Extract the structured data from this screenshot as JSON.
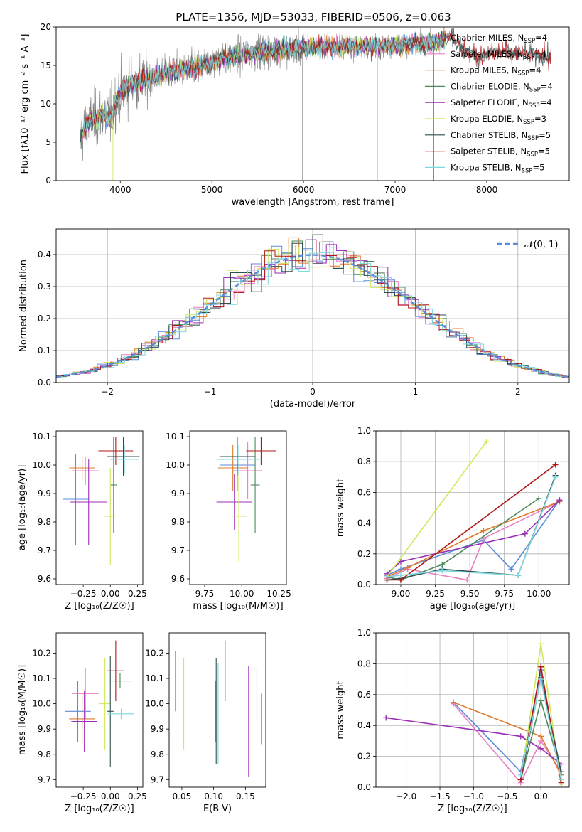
{
  "title": "PLATE=1356, MJD=53033, FIBERID=0506, z=0.063",
  "colors": {
    "chabrier_miles": "#5b8bd9",
    "salpeter_miles": "#e87fc0",
    "kroupa_miles": "#e07b2a",
    "chabrier_elodie": "#4c8a5a",
    "salpeter_elodie": "#9b2fb5",
    "kroupa_elodie": "#cfe85a",
    "chabrier_stelib": "#2f4f4f",
    "salpeter_stelib": "#b01717",
    "kroupa_stelib": "#7fd8e0",
    "data": "#808080"
  },
  "chart_data": [
    {
      "id": "spectrum",
      "type": "line",
      "xlabel": "wavelength [Angstrom, rest frame]",
      "ylabel": "Flux [fλ10⁻¹⁷ erg cm⁻² s⁻¹ A⁻¹]",
      "xlim": [
        3300,
        8900
      ],
      "ylim": [
        0,
        20
      ],
      "xticks": [
        4000,
        5000,
        6000,
        7000,
        8000
      ],
      "yticks": [
        0,
        5,
        10,
        15,
        20
      ],
      "legend_position": "right",
      "legend": [
        {
          "label": "Chabrier MILES, N_SSP=4",
          "key": "chabrier_miles"
        },
        {
          "label": "Salpeter MILES, N_SSP=4",
          "key": "salpeter_miles"
        },
        {
          "label": "Kroupa MILES, N_SSP=4",
          "key": "kroupa_miles"
        },
        {
          "label": "Chabrier ELODIE, N_SSP=4",
          "key": "chabrier_elodie"
        },
        {
          "label": "Salpeter ELODIE, N_SSP=4",
          "key": "salpeter_elodie"
        },
        {
          "label": "Kroupa ELODIE, N_SSP=3",
          "key": "kroupa_elodie"
        },
        {
          "label": "Chabrier STELIB, N_SSP=5",
          "key": "chabrier_stelib"
        },
        {
          "label": "Salpeter STELIB, N_SSP=5",
          "key": "salpeter_stelib"
        },
        {
          "label": "Kroupa STELIB, N_SSP=5",
          "key": "kroupa_stelib"
        }
      ],
      "continuum": [
        [
          3560,
          5.5
        ],
        [
          3650,
          7.5
        ],
        [
          3800,
          8.5
        ],
        [
          3900,
          8.2
        ],
        [
          3950,
          10.5
        ],
        [
          4000,
          11.5
        ],
        [
          4100,
          12.5
        ],
        [
          4300,
          13.2
        ],
        [
          4500,
          14.0
        ],
        [
          4700,
          14.5
        ],
        [
          4900,
          15.0
        ],
        [
          5100,
          15.8
        ],
        [
          5300,
          16.2
        ],
        [
          5500,
          16.7
        ],
        [
          5700,
          17.0
        ],
        [
          5900,
          17.2
        ],
        [
          6100,
          17.4
        ],
        [
          6300,
          17.5
        ],
        [
          6500,
          17.5
        ],
        [
          6700,
          17.5
        ],
        [
          6900,
          17.6
        ],
        [
          7100,
          17.7
        ],
        [
          7300,
          17.8
        ],
        [
          7500,
          18.2
        ],
        [
          7600,
          19.0
        ],
        [
          7700,
          17.6
        ],
        [
          7900,
          16.0
        ],
        [
          8100,
          16.8
        ],
        [
          8300,
          16.5
        ],
        [
          8500,
          16.5
        ],
        [
          8700,
          16.0
        ]
      ]
    },
    {
      "id": "residuals",
      "type": "step",
      "xlabel": "(data-model)/error",
      "ylabel": "Normed distribution",
      "xlim": [
        -2.5,
        2.5
      ],
      "ylim": [
        0,
        0.48
      ],
      "xticks": [
        -2,
        -1,
        0,
        1,
        2
      ],
      "yticks": [
        0.0,
        0.1,
        0.2,
        0.3,
        0.4
      ],
      "legend": "𝒩(0, 1)",
      "legend_position": "top-right",
      "bin_width": 0.1
    },
    {
      "id": "age_vs_Z",
      "type": "errorbar",
      "xlabel": "Z [log₁₀(Z/Z☉)]",
      "ylabel": "age  [log₁₀(age/yr)]",
      "xlim": [
        -0.5,
        0.3
      ],
      "ylim": [
        9.58,
        10.12
      ],
      "xticks": [
        -0.25,
        0.0,
        0.25
      ],
      "yticks": [
        9.6,
        9.7,
        9.8,
        9.9,
        10.0,
        10.1
      ],
      "points": [
        {
          "key": "chabrier_miles",
          "x": -0.32,
          "xerr": 0.12,
          "y": 9.88,
          "yerr": 0.16
        },
        {
          "key": "salpeter_miles",
          "x": -0.23,
          "xerr": 0.12,
          "y": 9.98,
          "yerr": 0.05
        },
        {
          "key": "kroupa_miles",
          "x": -0.26,
          "xerr": 0.12,
          "y": 9.99,
          "yerr": 0.04
        },
        {
          "key": "chabrier_elodie",
          "x": 0.03,
          "xerr": 0.03,
          "y": 9.93,
          "yerr": 0.17
        },
        {
          "key": "salpeter_elodie",
          "x": -0.2,
          "xerr": 0.17,
          "y": 9.87,
          "yerr": 0.15
        },
        {
          "key": "kroupa_elodie",
          "x": 0.0,
          "xerr": 0.05,
          "y": 9.82,
          "yerr": 0.17
        },
        {
          "key": "chabrier_stelib",
          "x": 0.12,
          "xerr": 0.15,
          "y": 10.03,
          "yerr": 0.07
        },
        {
          "key": "salpeter_stelib",
          "x": 0.05,
          "xerr": 0.16,
          "y": 10.05,
          "yerr": 0.05
        },
        {
          "key": "kroupa_stelib",
          "x": 0.13,
          "xerr": 0.13,
          "y": 10.02,
          "yerr": 0.05
        }
      ]
    },
    {
      "id": "age_vs_mass",
      "type": "errorbar",
      "xlabel": "mass [log₁₀(M/M☉)]",
      "ylabel": "",
      "xlim": [
        9.65,
        10.3
      ],
      "ylim": [
        9.58,
        10.12
      ],
      "xticks": [
        9.75,
        10.0,
        10.25
      ],
      "yticks": [
        9.6,
        9.7,
        9.8,
        9.9,
        10.0,
        10.1
      ],
      "points": [
        {
          "key": "chabrier_miles",
          "x": 9.97,
          "xerr": 0.12,
          "y": 10.0,
          "yerr": 0.09
        },
        {
          "key": "salpeter_miles",
          "x": 10.04,
          "xerr": 0.1,
          "y": 9.98,
          "yerr": 0.1
        },
        {
          "key": "kroupa_miles",
          "x": 9.94,
          "xerr": 0.1,
          "y": 9.99,
          "yerr": 0.08
        },
        {
          "key": "chabrier_elodie",
          "x": 10.09,
          "xerr": 0.03,
          "y": 9.93,
          "yerr": 0.17
        },
        {
          "key": "salpeter_elodie",
          "x": 9.95,
          "xerr": 0.12,
          "y": 9.87,
          "yerr": 0.1
        },
        {
          "key": "kroupa_elodie",
          "x": 9.98,
          "xerr": 0.05,
          "y": 9.82,
          "yerr": 0.16
        },
        {
          "key": "chabrier_stelib",
          "x": 9.97,
          "xerr": 0.12,
          "y": 10.03,
          "yerr": 0.07
        },
        {
          "key": "salpeter_stelib",
          "x": 10.13,
          "xerr": 0.1,
          "y": 10.05,
          "yerr": 0.05
        },
        {
          "key": "kroupa_stelib",
          "x": 9.98,
          "xerr": 0.15,
          "y": 10.02,
          "yerr": 0.05
        }
      ]
    },
    {
      "id": "weight_vs_age",
      "type": "line",
      "xlabel": "age  [log₁₀(age/yr)]",
      "ylabel": "mass weight",
      "xlim": [
        8.82,
        10.22
      ],
      "ylim": [
        0,
        1
      ],
      "xticks": [
        9.0,
        9.25,
        9.5,
        9.75,
        10.0
      ],
      "yticks": [
        0.0,
        0.2,
        0.4,
        0.6,
        0.8,
        1.0
      ],
      "series": [
        {
          "key": "chabrier_miles",
          "x": [
            8.9,
            9.0,
            9.6,
            9.8,
            10.15
          ],
          "y": [
            0.06,
            0.1,
            0.29,
            0.1,
            0.55
          ]
        },
        {
          "key": "salpeter_miles",
          "x": [
            8.9,
            9.05,
            9.48,
            9.6,
            10.15
          ],
          "y": [
            0.04,
            0.1,
            0.03,
            0.3,
            0.54
          ]
        },
        {
          "key": "kroupa_miles",
          "x": [
            8.9,
            9.05,
            9.6,
            10.15
          ],
          "y": [
            0.05,
            0.11,
            0.35,
            0.54
          ]
        },
        {
          "key": "chabrier_elodie",
          "x": [
            8.9,
            9.0,
            9.3,
            10.0
          ],
          "y": [
            0.05,
            0.03,
            0.13,
            0.56
          ]
        },
        {
          "key": "salpeter_elodie",
          "x": [
            8.9,
            9.0,
            9.9,
            10.15
          ],
          "y": [
            0.07,
            0.15,
            0.33,
            0.55
          ]
        },
        {
          "key": "kroupa_elodie",
          "x": [
            8.9,
            9.62
          ],
          "y": [
            0.05,
            0.93
          ]
        },
        {
          "key": "chabrier_stelib",
          "x": [
            8.9,
            9.0,
            9.3,
            9.85,
            10.12
          ],
          "y": [
            0.03,
            0.04,
            0.1,
            0.06,
            0.71
          ]
        },
        {
          "key": "salpeter_stelib",
          "x": [
            8.9,
            9.0,
            10.12
          ],
          "y": [
            0.03,
            0.03,
            0.78
          ]
        },
        {
          "key": "kroupa_stelib",
          "x": [
            8.9,
            9.0,
            9.3,
            9.85,
            10.12
          ],
          "y": [
            0.05,
            0.06,
            0.09,
            0.06,
            0.7
          ]
        }
      ]
    },
    {
      "id": "mass_vs_Z",
      "type": "errorbar",
      "xlabel": "Z [log₁₀(Z/Z☉)]",
      "ylabel": "mass [log₁₀(M/M☉)]",
      "xlim": [
        -0.5,
        0.3
      ],
      "ylim": [
        9.67,
        10.28
      ],
      "xticks": [
        -0.25,
        0.0,
        0.25
      ],
      "yticks": [
        9.7,
        9.8,
        9.9,
        10.0,
        10.1,
        10.2
      ],
      "points": [
        {
          "key": "chabrier_miles",
          "x": -0.3,
          "xerr": 0.12,
          "y": 9.97,
          "yerr": 0.12
        },
        {
          "key": "salpeter_miles",
          "x": -0.23,
          "xerr": 0.12,
          "y": 10.04,
          "yerr": 0.1
        },
        {
          "key": "kroupa_miles",
          "x": -0.26,
          "xerr": 0.12,
          "y": 9.94,
          "yerr": 0.1
        },
        {
          "key": "chabrier_elodie",
          "x": 0.09,
          "xerr": 0.1,
          "y": 10.09,
          "yerr": 0.03
        },
        {
          "key": "salpeter_elodie",
          "x": -0.24,
          "xerr": 0.12,
          "y": 9.93,
          "yerr": 0.12
        },
        {
          "key": "kroupa_elodie",
          "x": -0.05,
          "xerr": 0.05,
          "y": 10.0,
          "yerr": 0.18
        },
        {
          "key": "chabrier_stelib",
          "x": 0.0,
          "xerr": 0.03,
          "y": 9.97,
          "yerr": 0.22
        },
        {
          "key": "salpeter_stelib",
          "x": 0.05,
          "xerr": 0.08,
          "y": 10.13,
          "yerr": 0.12
        },
        {
          "key": "kroupa_stelib",
          "x": 0.1,
          "xerr": 0.12,
          "y": 9.96,
          "yerr": 0.02
        }
      ]
    },
    {
      "id": "mass_vs_ebv",
      "type": "errorbar",
      "xlabel": "E(B-V)",
      "ylabel": "",
      "xlim": [
        0.03,
        0.182
      ],
      "ylim": [
        9.67,
        10.28
      ],
      "xticks": [
        0.05,
        0.1,
        0.15
      ],
      "yticks": [
        9.7,
        9.8,
        9.9,
        10.0,
        10.1,
        10.2
      ],
      "points": [
        {
          "key": "chabrier_miles",
          "x": 0.103,
          "y": 9.97,
          "yerr": 0.12
        },
        {
          "key": "salpeter_miles",
          "x": 0.168,
          "y": 10.04,
          "yerr": 0.1
        },
        {
          "key": "kroupa_miles",
          "x": 0.175,
          "y": 9.94,
          "yerr": 0.1
        },
        {
          "key": "chabrier_elodie",
          "x": 0.04,
          "y": 10.09,
          "yerr": 0.12
        },
        {
          "key": "salpeter_elodie",
          "x": 0.155,
          "y": 9.93,
          "yerr": 0.22
        },
        {
          "key": "kroupa_elodie",
          "x": 0.053,
          "y": 10.0,
          "yerr": 0.18
        },
        {
          "key": "chabrier_stelib",
          "x": 0.104,
          "y": 9.97,
          "yerr": 0.21
        },
        {
          "key": "salpeter_stelib",
          "x": 0.118,
          "y": 10.13,
          "yerr": 0.12
        },
        {
          "key": "kroupa_stelib",
          "x": 0.107,
          "y": 9.96,
          "yerr": 0.2
        }
      ]
    },
    {
      "id": "weight_vs_Z",
      "type": "line",
      "xlabel": "Z [log₁₀(Z/Z☉)]",
      "ylabel": "mass weight",
      "xlim": [
        -2.45,
        0.42
      ],
      "ylim": [
        0,
        1
      ],
      "xticks": [
        -2.0,
        -1.5,
        -1.0,
        -0.5,
        0.0
      ],
      "yticks": [
        0.0,
        0.2,
        0.4,
        0.6,
        0.8,
        1.0
      ],
      "series": [
        {
          "key": "chabrier_miles",
          "x": [
            -1.3,
            -0.3,
            0.0,
            0.3
          ],
          "y": [
            0.55,
            0.1,
            0.76,
            0.05
          ]
        },
        {
          "key": "salpeter_miles",
          "x": [
            -1.3,
            -0.3,
            0.0,
            0.3
          ],
          "y": [
            0.54,
            0.03,
            0.3,
            0.1
          ]
        },
        {
          "key": "kroupa_miles",
          "x": [
            -1.3,
            0.0,
            0.3
          ],
          "y": [
            0.55,
            0.33,
            0.08
          ]
        },
        {
          "key": "chabrier_elodie",
          "x": [
            -0.3,
            0.0,
            0.3
          ],
          "y": [
            0.05,
            0.56,
            0.1
          ]
        },
        {
          "key": "salpeter_elodie",
          "x": [
            -2.3,
            -0.3,
            0.0,
            0.3
          ],
          "y": [
            0.45,
            0.33,
            0.25,
            0.15
          ]
        },
        {
          "key": "kroupa_elodie",
          "x": [
            -0.3,
            0.0,
            0.3
          ],
          "y": [
            0.05,
            0.93,
            0.02
          ]
        },
        {
          "key": "chabrier_stelib",
          "x": [
            -0.3,
            0.0,
            0.3
          ],
          "y": [
            0.05,
            0.71,
            0.1
          ]
        },
        {
          "key": "salpeter_stelib",
          "x": [
            -0.3,
            0.0,
            0.3
          ],
          "y": [
            0.05,
            0.78,
            0.03
          ]
        },
        {
          "key": "kroupa_stelib",
          "x": [
            -0.3,
            0.0,
            0.3
          ],
          "y": [
            0.08,
            0.7,
            0.05
          ]
        }
      ]
    }
  ]
}
